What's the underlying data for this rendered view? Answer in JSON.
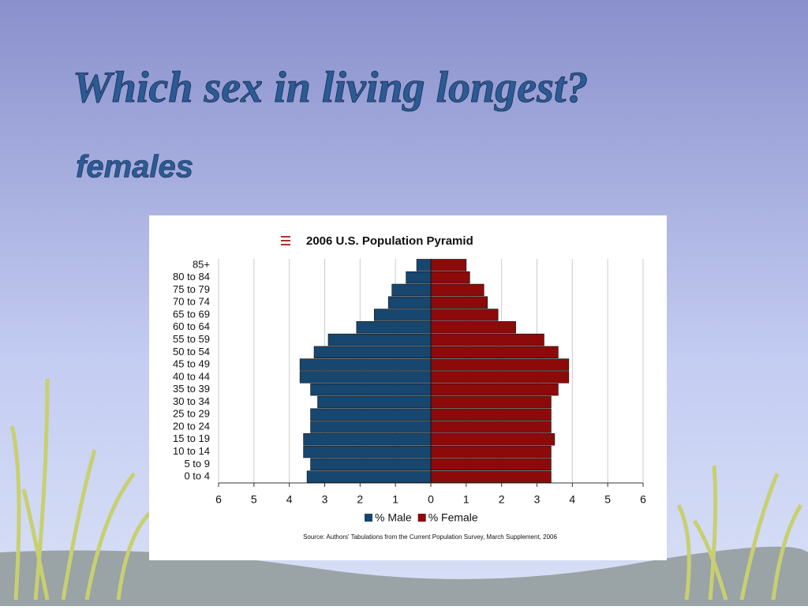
{
  "slide": {
    "heading": "Which sex in living longest?",
    "answer": "females"
  },
  "chart_data": {
    "type": "pyramid",
    "title": "2006 U.S. Population Pyramid",
    "categories": [
      "85+",
      "80 to 84",
      "75 to 79",
      "70 to 74",
      "65 to 69",
      "60 to 64",
      "55 to 59",
      "50 to 54",
      "45 to 49",
      "40 to 44",
      "35 to 39",
      "30 to 34",
      "25 to 29",
      "20 to 24",
      "15 to 19",
      "10 to 14",
      "5 to 9",
      "0 to 4"
    ],
    "series": [
      {
        "name": "% Male",
        "color": "#17466e",
        "values": [
          -0.4,
          -0.7,
          -1.1,
          -1.2,
          -1.6,
          -2.1,
          -2.9,
          -3.3,
          -3.7,
          -3.7,
          -3.4,
          -3.2,
          -3.4,
          -3.4,
          -3.6,
          -3.6,
          -3.4,
          -3.5
        ]
      },
      {
        "name": "% Female",
        "color": "#8c0a0a",
        "values": [
          1.0,
          1.1,
          1.5,
          1.6,
          1.9,
          2.4,
          3.2,
          3.6,
          3.9,
          3.9,
          3.6,
          3.4,
          3.4,
          3.4,
          3.5,
          3.4,
          3.4,
          3.4
        ]
      }
    ],
    "xlim": [
      -6,
      6
    ],
    "xticks": [
      {
        "value": -6,
        "label": "6"
      },
      {
        "value": -5,
        "label": "5"
      },
      {
        "value": -4,
        "label": "4"
      },
      {
        "value": -3,
        "label": "3"
      },
      {
        "value": -2,
        "label": "2"
      },
      {
        "value": -1,
        "label": "1"
      },
      0,
      1,
      2,
      3,
      4,
      5,
      6
    ],
    "grid": true,
    "source": "Source: Authors' Tabulations from the Current Population Survey, March Supplement, 2006"
  }
}
